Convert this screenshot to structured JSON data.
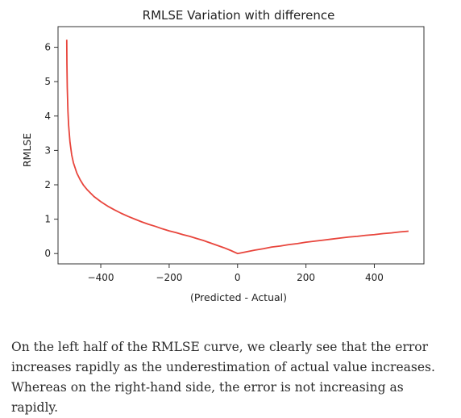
{
  "chart_data": {
    "type": "line",
    "title": "RMLSE Variation with difference",
    "xlabel": "(Predicted - Actual)",
    "ylabel": "RMLSE",
    "xlim": [
      -525,
      545
    ],
    "ylim": [
      -0.3,
      6.6
    ],
    "xticks": [
      -400,
      -200,
      0,
      200,
      400
    ],
    "xtick_labels": [
      "−400",
      "−200",
      "0",
      "200",
      "400"
    ],
    "yticks": [
      0,
      1,
      2,
      3,
      4,
      5,
      6
    ],
    "ytick_labels": [
      "0",
      "1",
      "2",
      "3",
      "4",
      "5",
      "6"
    ],
    "grid": false,
    "series": [
      {
        "color": "#e8453c",
        "x": [
          -499.5,
          -499,
          -498,
          -496,
          -494,
          -490,
          -485,
          -480,
          -470,
          -460,
          -450,
          -440,
          -420,
          -400,
          -380,
          -360,
          -340,
          -320,
          -300,
          -280,
          -260,
          -240,
          -220,
          -200,
          -180,
          -160,
          -140,
          -120,
          -100,
          -80,
          -60,
          -40,
          -20,
          0,
          25,
          50,
          75,
          100,
          125,
          150,
          175,
          200,
          225,
          250,
          275,
          300,
          325,
          350,
          375,
          400,
          425,
          450,
          475,
          500
        ],
        "y": [
          6.22,
          5.52,
          4.83,
          4.14,
          3.73,
          3.24,
          2.87,
          2.64,
          2.34,
          2.14,
          1.98,
          1.86,
          1.66,
          1.51,
          1.38,
          1.27,
          1.17,
          1.08,
          1.0,
          0.92,
          0.85,
          0.79,
          0.72,
          0.66,
          0.61,
          0.55,
          0.5,
          0.44,
          0.38,
          0.31,
          0.24,
          0.17,
          0.09,
          0.0,
          0.05,
          0.1,
          0.14,
          0.19,
          0.22,
          0.26,
          0.29,
          0.33,
          0.36,
          0.39,
          0.42,
          0.45,
          0.48,
          0.5,
          0.53,
          0.55,
          0.58,
          0.6,
          0.63,
          0.65
        ]
      }
    ]
  },
  "caption": "On the left half of the RMLSE curve, we clearly see that the error increases rapidly as the underestimation of actual value increases. Whereas on the right-hand side, the error is not increasing as rapidly."
}
